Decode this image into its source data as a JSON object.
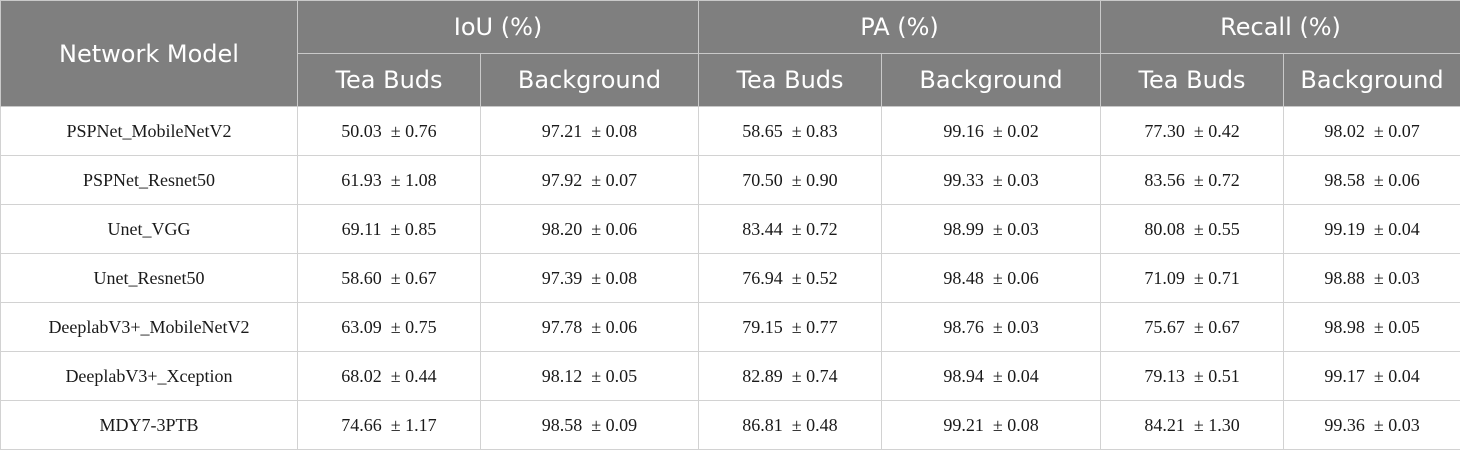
{
  "header": {
    "model_col": "Network Model",
    "groups": [
      "IoU (%)",
      "PA (%)",
      "Recall (%)"
    ],
    "subcols": [
      "Tea Buds",
      "Background",
      "Tea Buds",
      "Background",
      "Tea Buds",
      "Background"
    ]
  },
  "rows": [
    {
      "model": "PSPNet_MobileNetV2",
      "values": [
        "50.03  ± 0.76",
        "97.21  ± 0.08",
        "58.65  ± 0.83",
        "99.16  ± 0.02",
        "77.30  ± 0.42",
        "98.02  ± 0.07"
      ]
    },
    {
      "model": "PSPNet_Resnet50",
      "values": [
        "61.93  ± 1.08",
        "97.92  ± 0.07",
        "70.50  ± 0.90",
        "99.33  ± 0.03",
        "83.56  ± 0.72",
        "98.58  ± 0.06"
      ]
    },
    {
      "model": "Unet_VGG",
      "values": [
        "69.11  ± 0.85",
        "98.20  ± 0.06",
        "83.44  ± 0.72",
        "98.99  ± 0.03",
        "80.08  ± 0.55",
        "99.19  ± 0.04"
      ]
    },
    {
      "model": "Unet_Resnet50",
      "values": [
        "58.60  ± 0.67",
        "97.39  ± 0.08",
        "76.94  ± 0.52",
        "98.48  ± 0.06",
        "71.09  ± 0.71",
        "98.88  ± 0.03"
      ]
    },
    {
      "model": "DeeplabV3+_MobileNetV2",
      "values": [
        "63.09  ± 0.75",
        "97.78  ± 0.06",
        "79.15  ± 0.77",
        "98.76  ± 0.03",
        "75.67  ± 0.67",
        "98.98  ± 0.05"
      ]
    },
    {
      "model": "DeeplabV3+_Xception",
      "values": [
        "68.02  ± 0.44",
        "98.12  ± 0.05",
        "82.89  ± 0.74",
        "98.94  ± 0.04",
        "79.13  ± 0.51",
        "99.17  ± 0.04"
      ]
    },
    {
      "model": "MDY7-3PTB",
      "values": [
        "74.66  ± 1.17",
        "98.58  ± 0.09",
        "86.81  ± 0.48",
        "99.21  ± 0.08",
        "84.21  ± 1.30",
        "99.36  ± 0.03"
      ]
    }
  ]
}
